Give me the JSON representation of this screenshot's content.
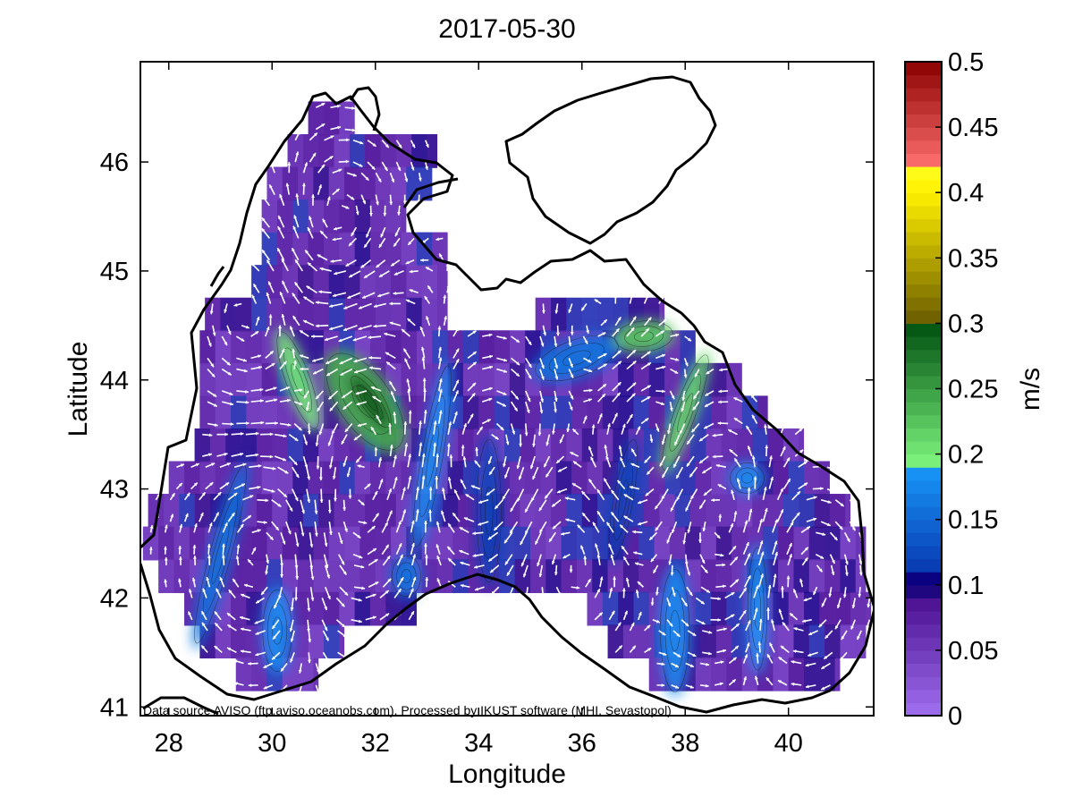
{
  "title": "2017-05-30",
  "footnote": "Data source AVISO (ftp.aviso.oceanobs.com), Processed by IKUST software (MHI, Sevastopol)",
  "map": {
    "xlabel": "Longitude",
    "ylabel": "Latitude",
    "xlim": [
      27.45,
      41.65
    ],
    "ylim": [
      40.92,
      46.92
    ],
    "xticks": [
      {
        "v": 28,
        "label": "28"
      },
      {
        "v": 30,
        "label": "30"
      },
      {
        "v": 32,
        "label": "32"
      },
      {
        "v": 34,
        "label": "34"
      },
      {
        "v": 36,
        "label": "36"
      },
      {
        "v": 38,
        "label": "38"
      },
      {
        "v": 40,
        "label": "40"
      }
    ],
    "yticks": [
      {
        "v": 41,
        "label": "41"
      },
      {
        "v": 42,
        "label": "42"
      },
      {
        "v": 43,
        "label": "43"
      },
      {
        "v": 44,
        "label": "44"
      },
      {
        "v": 45,
        "label": "45"
      },
      {
        "v": 46,
        "label": "46"
      }
    ],
    "field_rows": [
      {
        "lat": 46.4,
        "x0": 30.7,
        "x1": 31.6
      },
      {
        "lat": 46.1,
        "x0": 30.3,
        "x1": 33.2
      },
      {
        "lat": 45.8,
        "x0": 29.9,
        "x1": 33.1
      },
      {
        "lat": 45.5,
        "x0": 29.8,
        "x1": 32.6
      },
      {
        "lat": 45.2,
        "x0": 29.8,
        "x1": 33.4
      },
      {
        "lat": 44.9,
        "x0": 29.6,
        "x1": 33.4
      },
      {
        "lat": 44.6,
        "x0": 28.7,
        "x1": 33.4,
        "x2": 35.1,
        "x3": 37.6
      },
      {
        "lat": 44.3,
        "x0": 28.6,
        "x1": 38.2
      },
      {
        "lat": 44.0,
        "x0": 28.6,
        "x1": 39.1
      },
      {
        "lat": 43.7,
        "x0": 28.6,
        "x1": 39.6
      },
      {
        "lat": 43.4,
        "x0": 28.5,
        "x1": 40.3
      },
      {
        "lat": 43.1,
        "x0": 28.0,
        "x1": 40.8
      },
      {
        "lat": 42.8,
        "x0": 27.6,
        "x1": 41.2
      },
      {
        "lat": 42.5,
        "x0": 27.5,
        "x1": 41.5
      },
      {
        "lat": 42.2,
        "x0": 27.8,
        "x1": 41.5
      },
      {
        "lat": 41.9,
        "x0": 28.3,
        "x1": 32.8,
        "x2": 36.1,
        "x3": 41.6
      },
      {
        "lat": 41.6,
        "x0": 28.6,
        "x1": 31.4,
        "x2": 36.5,
        "x3": 41.5
      },
      {
        "lat": 41.3,
        "x0": 29.3,
        "x1": 30.9,
        "x2": 37.3,
        "x3": 41.0
      }
    ],
    "speed_features": [
      {
        "lon": 30.5,
        "lat": 44.0,
        "rx": 0.25,
        "ry": 0.5,
        "rot": -20,
        "v": 0.2
      },
      {
        "lon": 31.8,
        "lat": 43.8,
        "rx": 0.55,
        "ry": 0.55,
        "rot": -35,
        "v": 0.24
      },
      {
        "lon": 31.9,
        "lat": 43.8,
        "rx": 0.18,
        "ry": 0.3,
        "rot": -35,
        "v": 0.3
      },
      {
        "lon": 33.1,
        "lat": 43.3,
        "rx": 0.22,
        "ry": 0.9,
        "rot": 10,
        "v": 0.18
      },
      {
        "lon": 29.0,
        "lat": 42.4,
        "rx": 0.22,
        "ry": 0.9,
        "rot": 15,
        "v": 0.16
      },
      {
        "lon": 30.1,
        "lat": 41.7,
        "rx": 0.3,
        "ry": 0.4,
        "rot": 0,
        "v": 0.18
      },
      {
        "lon": 32.6,
        "lat": 42.2,
        "rx": 0.3,
        "ry": 0.2,
        "rot": 0,
        "v": 0.16
      },
      {
        "lon": 35.9,
        "lat": 44.2,
        "rx": 0.9,
        "ry": 0.18,
        "rot": -20,
        "v": 0.16
      },
      {
        "lon": 37.2,
        "lat": 44.4,
        "rx": 0.6,
        "ry": 0.15,
        "rot": -5,
        "v": 0.22
      },
      {
        "lon": 38.0,
        "lat": 43.7,
        "rx": 0.22,
        "ry": 0.6,
        "rot": 20,
        "v": 0.21
      },
      {
        "lon": 39.2,
        "lat": 43.1,
        "rx": 0.35,
        "ry": 0.15,
        "rot": 0,
        "v": 0.18
      },
      {
        "lon": 37.8,
        "lat": 41.7,
        "rx": 0.3,
        "ry": 0.6,
        "rot": 0,
        "v": 0.18
      },
      {
        "lon": 39.4,
        "lat": 41.9,
        "rx": 0.2,
        "ry": 0.6,
        "rot": 0,
        "v": 0.19
      },
      {
        "lon": 36.8,
        "lat": 42.9,
        "rx": 0.2,
        "ry": 0.6,
        "rot": 10,
        "v": 0.12
      },
      {
        "lon": 34.2,
        "lat": 42.8,
        "rx": 0.25,
        "ry": 0.7,
        "rot": 0,
        "v": 0.12
      }
    ]
  },
  "colorbar": {
    "label": "m/s",
    "min": 0,
    "max": 0.5,
    "ticks": [
      {
        "v": 0,
        "label": "0"
      },
      {
        "v": 0.05,
        "label": "0.05"
      },
      {
        "v": 0.1,
        "label": "0.1"
      },
      {
        "v": 0.15,
        "label": "0.15"
      },
      {
        "v": 0.2,
        "label": "0.2"
      },
      {
        "v": 0.25,
        "label": "0.25"
      },
      {
        "v": 0.3,
        "label": "0.3"
      },
      {
        "v": 0.35,
        "label": "0.35"
      },
      {
        "v": 0.4,
        "label": "0.4"
      },
      {
        "v": 0.45,
        "label": "0.45"
      },
      {
        "v": 0.5,
        "label": "0.5"
      }
    ],
    "bands": [
      {
        "from": 0,
        "to": 0.09,
        "c0": "#a070f0",
        "c1": "#4a1090"
      },
      {
        "from": 0.09,
        "to": 0.11,
        "c0": "#2a0a80",
        "c1": "#000080"
      },
      {
        "from": 0.11,
        "to": 0.19,
        "c0": "#0838b0",
        "c1": "#1898f8"
      },
      {
        "from": 0.19,
        "to": 0.3,
        "c0": "#80f880",
        "c1": "#005010"
      },
      {
        "from": 0.3,
        "to": 0.4,
        "c0": "#6a5a00",
        "c1": "#fff000"
      },
      {
        "from": 0.4,
        "to": 0.42,
        "c0": "#fff000",
        "c1": "#ffff20"
      },
      {
        "from": 0.42,
        "to": 0.5,
        "c0": "#ff7070",
        "c1": "#8a0000"
      }
    ]
  },
  "colors": {
    "coastline": "#000000",
    "arrows": "#ffffff",
    "contours": "#1a1a1a",
    "background": "#ffffff"
  }
}
